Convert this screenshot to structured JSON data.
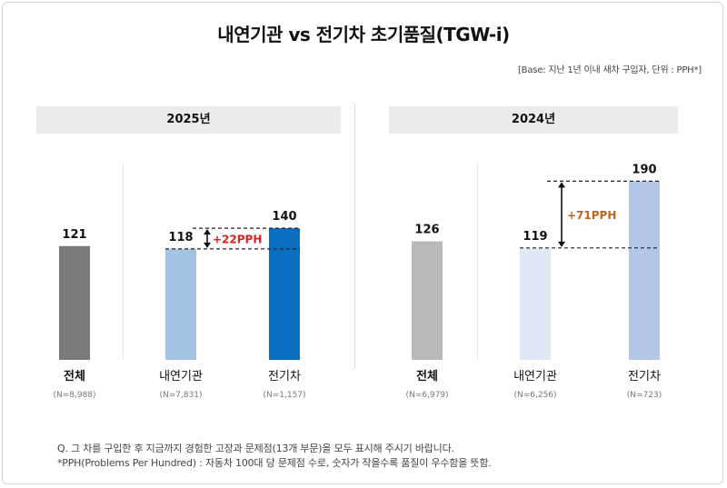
{
  "title": "내연기관 vs 전기차 초기품질(TGW-i)",
  "base_note": "[Base: 지난 1년 이내 새차 구입자, 단위 : PPH*]",
  "chart_data": [
    {
      "type": "bar",
      "title": "2025년",
      "categories": [
        "전체",
        "내연기관",
        "전기차"
      ],
      "sample_sizes": [
        "(N=8,988)",
        "(N=7,831)",
        "(N=1,157)"
      ],
      "values": [
        121,
        118,
        140
      ],
      "colors": [
        "#7a7a7a",
        "#a4c4e4",
        "#0b6dbf"
      ],
      "bold_category": [
        true,
        false,
        false
      ],
      "ylim": [
        0,
        200
      ],
      "gap_annotation": {
        "from": 1,
        "to": 2,
        "label": "+22PPH",
        "color": "#e01e1e"
      }
    },
    {
      "type": "bar",
      "title": "2024년",
      "categories": [
        "전체",
        "내연기관",
        "전기차"
      ],
      "sample_sizes": [
        "(N=6,979)",
        "(N=6,256)",
        "(N=723)"
      ],
      "values": [
        126,
        119,
        190
      ],
      "colors": [
        "#b9b9b9",
        "#dfe8f4",
        "#b4c6e6"
      ],
      "bold_category": [
        true,
        false,
        false
      ],
      "ylim": [
        0,
        200
      ],
      "gap_annotation": {
        "from": 1,
        "to": 2,
        "label": "+71PPH",
        "color": "#c0641a"
      }
    }
  ],
  "footnotes": [
    "Q. 그 차를 구입한 후 지금까지 경험한 고장과 문제점(13개 부문)을 모두 표시해 주시기 바랍니다.",
    "*PPH(Problems Per Hundred) : 자동차 100대 당 문제점 수로, 숫자가 작을수록 품질이 우수함을 뜻함."
  ]
}
